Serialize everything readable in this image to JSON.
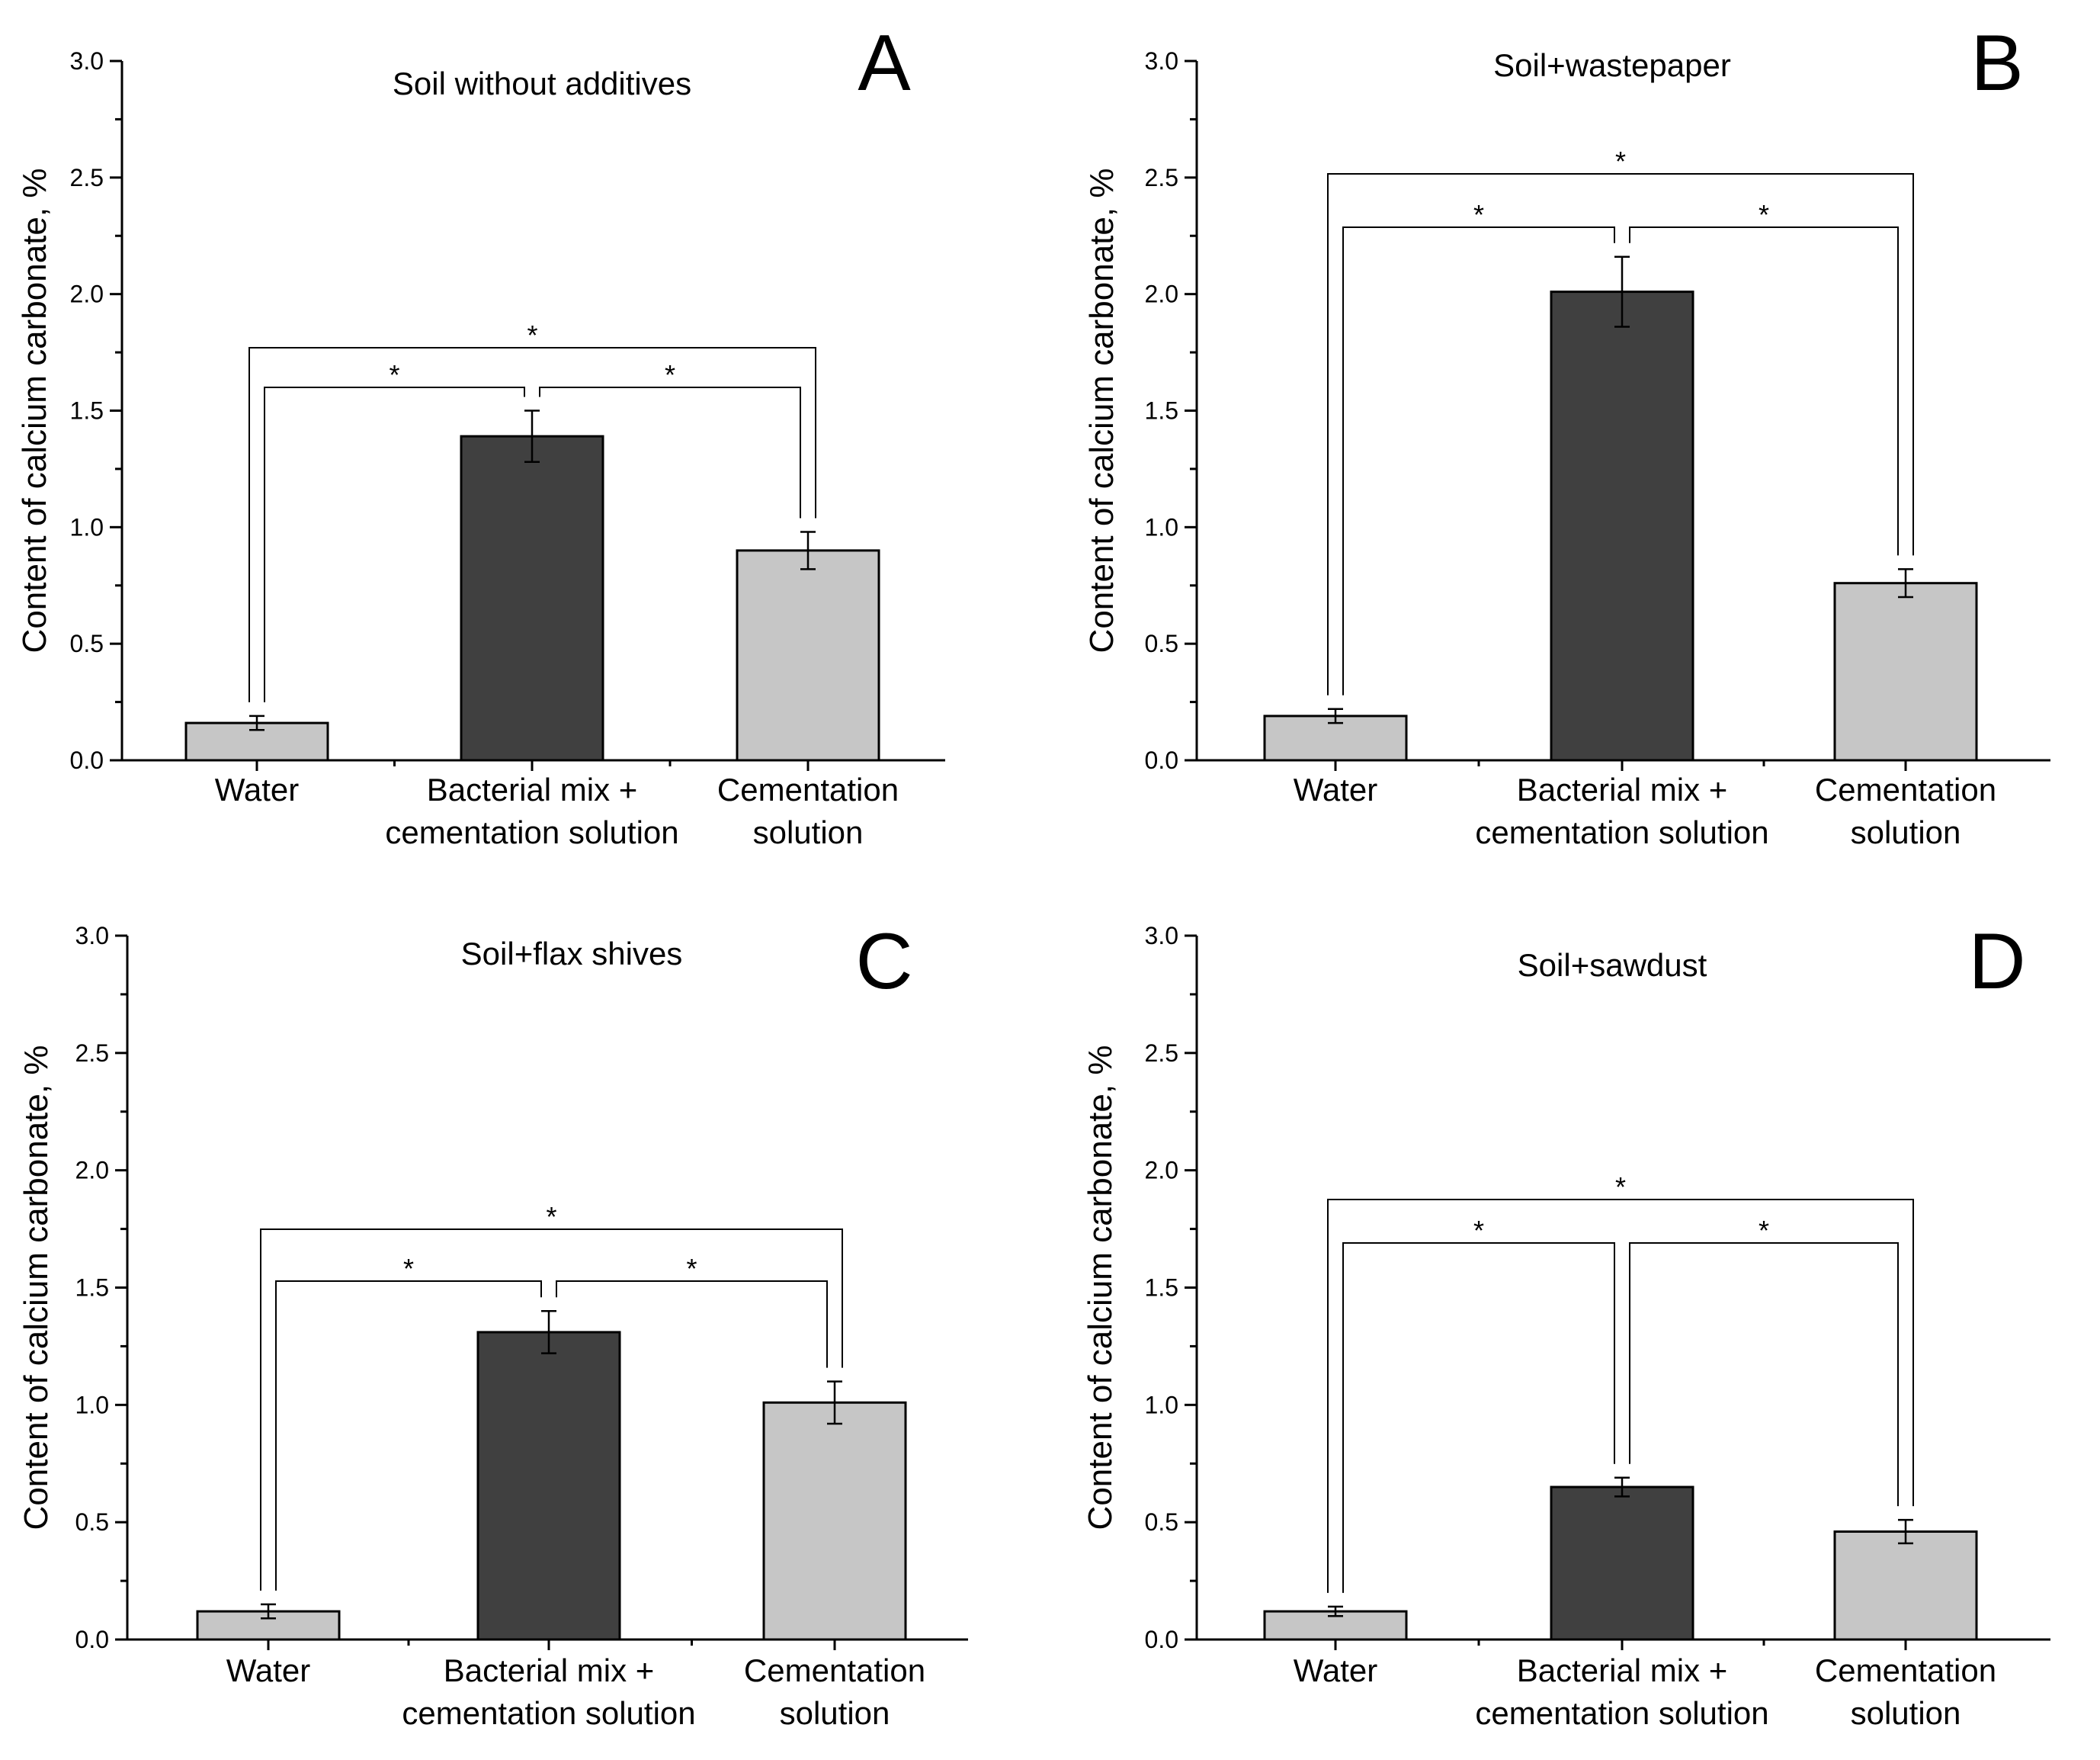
{
  "chart_data": [
    {
      "type": "bar",
      "panel": "A",
      "title": "Soil without additives",
      "ylabel": "Content of calcium carbonate, %",
      "xlabel": "",
      "ylim": [
        0,
        3.0
      ],
      "yticks": [
        "0.0",
        "0.5",
        "1.0",
        "1.5",
        "2.0",
        "2.5",
        "3.0"
      ],
      "categories": [
        [
          "Water"
        ],
        [
          "Bacterial mix +",
          "cementation solution"
        ],
        [
          "Cementation",
          "solution"
        ]
      ],
      "values": [
        0.16,
        1.39,
        0.9
      ],
      "errors": [
        0.03,
        0.11,
        0.08
      ],
      "colors": [
        "#c6c6c6",
        "#404040",
        "#c6c6c6"
      ],
      "significance": [
        {
          "from": 0,
          "to": 1,
          "label": "*"
        },
        {
          "from": 1,
          "to": 2,
          "label": "*"
        },
        {
          "from": 0,
          "to": 2,
          "label": "*"
        }
      ]
    },
    {
      "type": "bar",
      "panel": "B",
      "title": "Soil+wastepaper",
      "ylabel": "Content of calcium carbonate, %",
      "xlabel": "",
      "ylim": [
        0,
        3.0
      ],
      "yticks": [
        "0.0",
        "0.5",
        "1.0",
        "1.5",
        "2.0",
        "2.5",
        "3.0"
      ],
      "categories": [
        [
          "Water"
        ],
        [
          "Bacterial mix +",
          "cementation solution"
        ],
        [
          "Cementation",
          "solution"
        ]
      ],
      "values": [
        0.19,
        2.01,
        0.76
      ],
      "errors": [
        0.03,
        0.15,
        0.06
      ],
      "colors": [
        "#c6c6c6",
        "#404040",
        "#c6c6c6"
      ],
      "significance": [
        {
          "from": 0,
          "to": 1,
          "label": "*"
        },
        {
          "from": 1,
          "to": 2,
          "label": "*"
        },
        {
          "from": 0,
          "to": 2,
          "label": "*"
        }
      ]
    },
    {
      "type": "bar",
      "panel": "C",
      "title": "Soil+flax shives",
      "ylabel": "Content of calcium carbonate, %",
      "xlabel": "",
      "ylim": [
        0,
        3.0
      ],
      "yticks": [
        "0.0",
        "0.5",
        "1.0",
        "1.5",
        "2.0",
        "2.5",
        "3.0"
      ],
      "categories": [
        [
          "Water"
        ],
        [
          "Bacterial mix +",
          "cementation solution"
        ],
        [
          "Cementation",
          "solution"
        ]
      ],
      "values": [
        0.12,
        1.31,
        1.01
      ],
      "errors": [
        0.03,
        0.09,
        0.09
      ],
      "colors": [
        "#c6c6c6",
        "#404040",
        "#c6c6c6"
      ],
      "significance": [
        {
          "from": 0,
          "to": 1,
          "label": "*"
        },
        {
          "from": 1,
          "to": 2,
          "label": "*"
        },
        {
          "from": 0,
          "to": 2,
          "label": "*"
        }
      ]
    },
    {
      "type": "bar",
      "panel": "D",
      "title": "Soil+sawdust",
      "ylabel": "Content of calcium carbonate, %",
      "xlabel": "",
      "ylim": [
        0,
        3.0
      ],
      "yticks": [
        "0.0",
        "0.5",
        "1.0",
        "1.5",
        "2.0",
        "2.5",
        "3.0"
      ],
      "categories": [
        [
          "Water"
        ],
        [
          "Bacterial mix +",
          "cementation solution"
        ],
        [
          "Cementation",
          "solution"
        ]
      ],
      "values": [
        0.12,
        0.65,
        0.46
      ],
      "errors": [
        0.02,
        0.04,
        0.05
      ],
      "colors": [
        "#c6c6c6",
        "#404040",
        "#c6c6c6"
      ],
      "significance": [
        {
          "from": 0,
          "to": 1,
          "label": "*"
        },
        {
          "from": 1,
          "to": 2,
          "label": "*"
        },
        {
          "from": 0,
          "to": 2,
          "label": "*"
        }
      ]
    }
  ]
}
